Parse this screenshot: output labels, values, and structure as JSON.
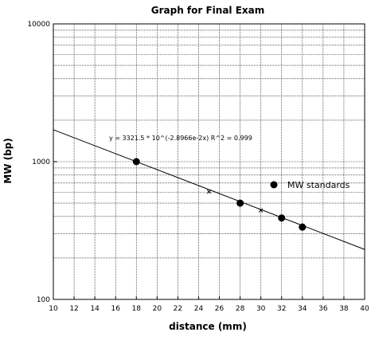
{
  "chart_data": {
    "type": "scatter",
    "title": "Graph for Final Exam",
    "xlabel": "distance (mm)",
    "ylabel": "MW (bp)",
    "xlim": [
      10,
      40
    ],
    "ylim": [
      100,
      10000
    ],
    "y_scale": "log",
    "x_ticks": [
      "10",
      "12",
      "14",
      "16",
      "18",
      "20",
      "22",
      "24",
      "26",
      "28",
      "30",
      "32",
      "34",
      "36",
      "38",
      "40"
    ],
    "y_ticks": [
      "100",
      "1000",
      "10000"
    ],
    "grid": true,
    "legend_position": "right",
    "series": [
      {
        "name": "MW standards",
        "marker": "circle",
        "x": [
          18,
          28,
          32,
          34
        ],
        "y": [
          1000,
          500,
          390,
          335
        ]
      },
      {
        "marker": "x",
        "x": [
          25,
          30
        ],
        "y": [
          615,
          450
        ]
      }
    ],
    "fit": {
      "type": "exponential",
      "equation": "y = 3321.5 * 10^(-2.8966e-2x)   R^2 = 0.999",
      "a": 3321.5,
      "b": -0.028966
    }
  },
  "colors": {
    "line": "#000000",
    "grid": "#000000",
    "background": "#ffffff"
  }
}
